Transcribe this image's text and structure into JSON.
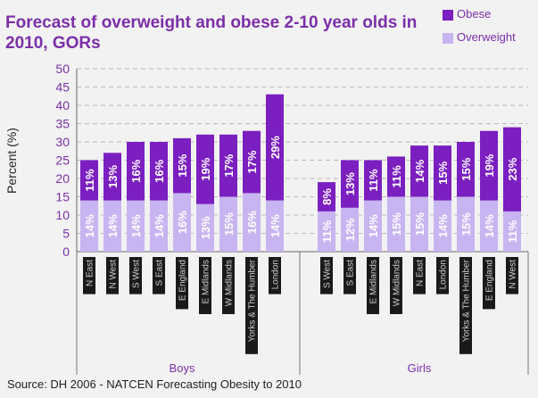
{
  "title": "Forecast of overweight and obese 2-10 year olds in 2010, GORs",
  "source": "Source: DH 2006 - NATCEN Forecasting Obesity to 2010",
  "colors": {
    "obese": "#7b1fc0",
    "overweight": "#c8b4f0",
    "text_purple": "#7b2ea8",
    "grid": "#bbbbbb",
    "background": "#f2f2f2"
  },
  "chart_data": {
    "type": "bar",
    "stacked": true,
    "title": "Forecast of overweight and obese 2-10 year olds in 2010, GORs",
    "ylabel": "Percent (%)",
    "ylim": [
      0,
      50
    ],
    "yticks": [
      0,
      5,
      10,
      15,
      20,
      25,
      30,
      35,
      40,
      45,
      50
    ],
    "grid": true,
    "legend_position": "top-right",
    "groups": [
      {
        "label": "Boys",
        "categories": [
          "N East",
          "N West",
          "S West",
          "S East",
          "E England",
          "E Midlands",
          "W Midlands",
          "Yorks & The Humber",
          "London"
        ],
        "series": [
          {
            "name": "Overweight",
            "values": [
              14,
              14,
              14,
              14,
              16,
              13,
              15,
              16,
              14
            ],
            "labels": [
              "14%",
              "14%",
              "14%",
              "14%",
              "16%",
              "13%",
              "15%",
              "16%",
              "14%"
            ]
          },
          {
            "name": "Obese",
            "values": [
              11,
              13,
              16,
              16,
              15,
              19,
              17,
              17,
              29
            ],
            "labels": [
              "11%",
              "13%",
              "16%",
              "16%",
              "15%",
              "19%",
              "17%",
              "17%",
              "29%"
            ]
          }
        ]
      },
      {
        "label": "Girls",
        "categories": [
          "S West",
          "S East",
          "E Midlands",
          "W Midlands",
          "N East",
          "London",
          "Yorks & The Humber",
          "E England",
          "N West"
        ],
        "series": [
          {
            "name": "Overweight",
            "values": [
              11,
              12,
              14,
              15,
              15,
              14,
              15,
              14,
              11
            ],
            "labels": [
              "11%",
              "12%",
              "14%",
              "15%",
              "15%",
              "14%",
              "15%",
              "14%",
              "11%"
            ]
          },
          {
            "name": "Obese",
            "values": [
              8,
              13,
              11,
              11,
              14,
              15,
              15,
              19,
              23
            ],
            "labels": [
              "8%",
              "13%",
              "11%",
              "11%",
              "14%",
              "15%",
              "15%",
              "19%",
              "23%"
            ]
          }
        ]
      }
    ]
  },
  "legend": [
    {
      "label": "Obese",
      "color_key": "obese"
    },
    {
      "label": "Overweight",
      "color_key": "overweight"
    }
  ]
}
